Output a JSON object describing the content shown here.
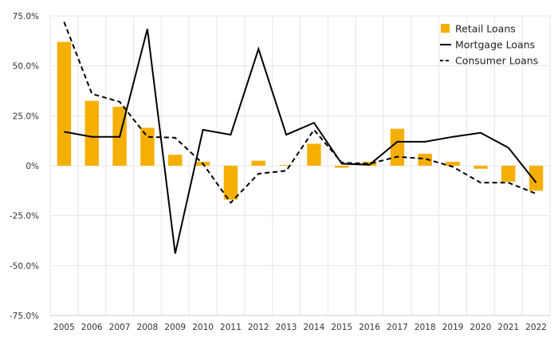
{
  "chart_data": {
    "type": "bar",
    "categories": [
      "2005",
      "2006",
      "2007",
      "2008",
      "2009",
      "2010",
      "2011",
      "2012",
      "2013",
      "2014",
      "2015",
      "2016",
      "2017",
      "2018",
      "2019",
      "2020",
      "2021",
      "2022"
    ],
    "series": [
      {
        "name": "Retail Loans",
        "kind": "bar",
        "color": "#F5AF00",
        "values": [
          62.0,
          32.5,
          29.5,
          19.0,
          5.5,
          2.0,
          -17.0,
          2.5,
          0.3,
          11.0,
          -1.0,
          2.0,
          18.5,
          6.0,
          2.0,
          -1.5,
          -8.0,
          -12.5
        ]
      },
      {
        "name": "Mortgage Loans",
        "kind": "line",
        "dash": "solid",
        "color": "#000000",
        "values": [
          17.0,
          14.5,
          14.5,
          68.5,
          -44.0,
          18.0,
          15.5,
          58.5,
          15.5,
          21.5,
          1.0,
          0.5,
          12.0,
          12.0,
          14.5,
          16.5,
          9.0,
          -8.5
        ]
      },
      {
        "name": "Consumer Loans",
        "kind": "line",
        "dash": "dashed",
        "color": "#000000",
        "values": [
          72.0,
          36.0,
          32.0,
          14.5,
          14.0,
          1.0,
          -18.5,
          -4.0,
          -2.5,
          18.0,
          1.5,
          1.0,
          4.5,
          3.5,
          -0.5,
          -8.5,
          -8.5,
          -14.0
        ]
      }
    ],
    "ylim": [
      -75,
      75
    ],
    "yticks": [
      75,
      50,
      25,
      0,
      -25,
      -50,
      -75
    ],
    "ytick_labels": [
      "75.0%",
      "50.0%",
      "25.0%",
      "0%",
      "-25.0%",
      "-50.0%",
      "-75.0%"
    ],
    "grid": true,
    "legend_position": "top-right",
    "legend": [
      {
        "label": "Retail Loans",
        "marker": "square",
        "color": "#F5AF00"
      },
      {
        "label": "Mortgage Loans",
        "marker": "solid-line",
        "color": "#000000"
      },
      {
        "label": "Consumer Loans",
        "marker": "dashed-line",
        "color": "#000000"
      }
    ],
    "title": "",
    "xlabel": "",
    "ylabel": ""
  }
}
